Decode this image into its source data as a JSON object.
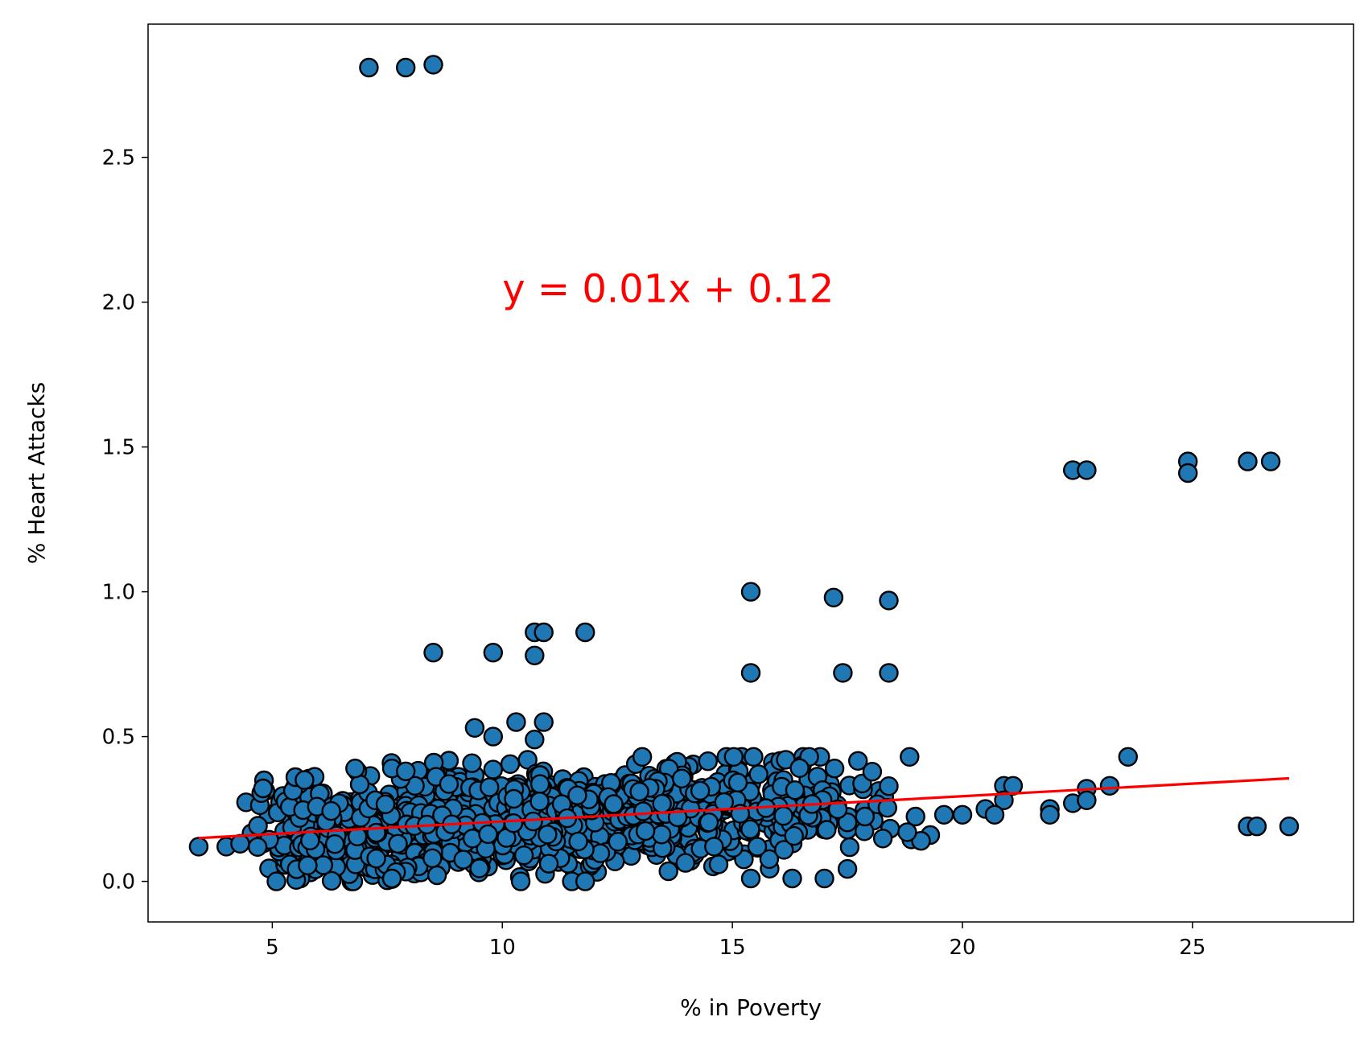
{
  "chart_data": {
    "type": "scatter",
    "title": "",
    "xlabel": "% in Poverty",
    "ylabel": "%  Heart Attacks",
    "xlim": [
      2.3,
      28.5
    ],
    "ylim": [
      -0.14,
      2.96
    ],
    "xticks": [
      5,
      10,
      15,
      20,
      25
    ],
    "xtick_labels": [
      "5",
      "10",
      "15",
      "20",
      "25"
    ],
    "yticks": [
      0.0,
      0.5,
      1.0,
      1.5,
      2.0,
      2.5
    ],
    "ytick_labels": [
      "0.0",
      "0.5",
      "1.0",
      "1.5",
      "2.0",
      "2.5"
    ],
    "grid": false,
    "legend": "none",
    "colors": {
      "marker_fill": "#1f77b4",
      "marker_edge": "#000000",
      "regression": "#ff0000",
      "annotation": "#ff0000"
    },
    "annotation": {
      "text": "y = 0.01x + 0.12",
      "x": 10.0,
      "y": 2.0
    },
    "regression": {
      "slope": 0.0087,
      "intercept": 0.12,
      "x_range": [
        3.4,
        27.1
      ]
    },
    "outliers": [
      [
        7.1,
        2.81
      ],
      [
        7.9,
        2.81
      ],
      [
        8.5,
        2.82
      ],
      [
        22.4,
        1.42
      ],
      [
        22.7,
        1.42
      ],
      [
        24.9,
        1.45
      ],
      [
        24.9,
        1.41
      ],
      [
        26.2,
        1.45
      ],
      [
        26.7,
        1.45
      ],
      [
        15.4,
        1.0
      ],
      [
        17.2,
        0.98
      ],
      [
        18.4,
        0.97
      ],
      [
        10.7,
        0.86
      ],
      [
        10.9,
        0.86
      ],
      [
        11.8,
        0.86
      ],
      [
        8.5,
        0.79
      ],
      [
        9.8,
        0.79
      ],
      [
        10.7,
        0.78
      ],
      [
        15.4,
        0.72
      ],
      [
        17.4,
        0.72
      ],
      [
        18.4,
        0.72
      ],
      [
        10.3,
        0.55
      ],
      [
        10.9,
        0.55
      ],
      [
        9.4,
        0.53
      ],
      [
        9.8,
        0.5
      ],
      [
        10.7,
        0.49
      ],
      [
        23.6,
        0.43
      ],
      [
        23.2,
        0.33
      ],
      [
        22.7,
        0.32
      ],
      [
        22.4,
        0.27
      ],
      [
        22.7,
        0.28
      ],
      [
        21.9,
        0.25
      ],
      [
        21.9,
        0.23
      ],
      [
        20.9,
        0.33
      ],
      [
        21.1,
        0.33
      ],
      [
        20.9,
        0.28
      ],
      [
        20.5,
        0.25
      ],
      [
        20.7,
        0.23
      ],
      [
        20.0,
        0.23
      ],
      [
        19.6,
        0.23
      ],
      [
        19.3,
        0.16
      ],
      [
        19.1,
        0.14
      ],
      [
        18.8,
        0.17
      ],
      [
        26.2,
        0.19
      ],
      [
        26.4,
        0.19
      ],
      [
        27.1,
        0.19
      ],
      [
        3.4,
        0.12
      ],
      [
        4.0,
        0.12
      ],
      [
        4.3,
        0.13
      ],
      [
        6.8,
        0.39
      ],
      [
        7.6,
        0.39
      ],
      [
        7.9,
        0.38
      ],
      [
        5.5,
        0.36
      ],
      [
        5.7,
        0.35
      ],
      [
        17.0,
        0.01
      ],
      [
        16.3,
        0.01
      ],
      [
        15.4,
        0.01
      ],
      [
        7.6,
        0.01
      ],
      [
        10.4,
        0.0
      ],
      [
        11.8,
        0.0
      ]
    ],
    "cluster": {
      "count": 1100,
      "x_range": [
        4.3,
        19.2
      ],
      "x_mode": 11.0,
      "y_min": 0.0,
      "y_max": 0.43,
      "y_spread": 0.09
    }
  }
}
